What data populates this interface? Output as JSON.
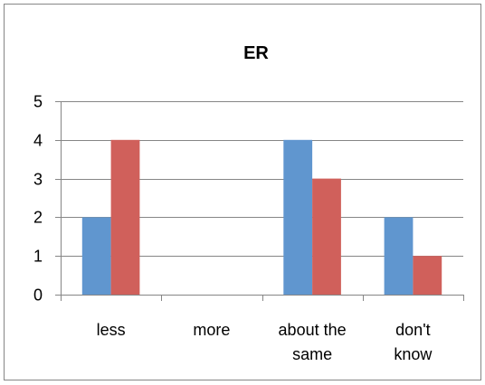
{
  "chart_data": {
    "type": "bar",
    "title": "ER",
    "xlabel": "",
    "ylabel": "",
    "categories": [
      [
        "less"
      ],
      [
        "more"
      ],
      [
        "about the",
        "same"
      ],
      [
        "don't",
        "know"
      ]
    ],
    "series": [
      {
        "values": [
          2,
          0,
          4,
          2
        ],
        "color": "#6096CF"
      },
      {
        "values": [
          4,
          0,
          3,
          1
        ],
        "color": "#D0605B"
      }
    ],
    "ylim": [
      0,
      5
    ],
    "yticks": [
      0,
      1,
      2,
      3,
      4,
      5
    ],
    "grid": true,
    "legend": "none"
  },
  "colors": {
    "background": "#FFFFFF",
    "frame": "#868686",
    "gridline": "#868686",
    "axis": "#868686"
  }
}
